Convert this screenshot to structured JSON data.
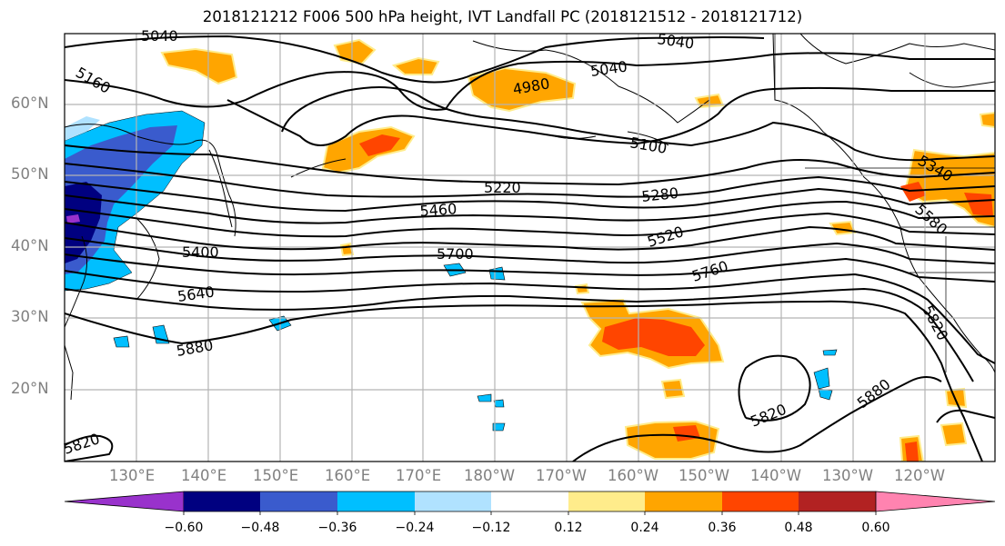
{
  "title": "2018121212 F006 500 hPa height, IVT Landfall PC (2018121512 - 2018121712)",
  "lat_labels": [
    "60°N",
    "50°N",
    "40°N",
    "30°N",
    "20°N"
  ],
  "lon_labels": [
    "130°E",
    "140°E",
    "150°E",
    "160°E",
    "170°E",
    "180°W",
    "170°W",
    "160°W",
    "150°W",
    "140°W",
    "130°W",
    "120°W"
  ],
  "contour_labels": [
    "5040",
    "5160",
    "4980",
    "5040",
    "5040",
    "5100",
    "5220",
    "5280",
    "5340",
    "5460",
    "5400",
    "5700",
    "5520",
    "5580",
    "5640",
    "5760",
    "5880",
    "5820",
    "5820",
    "5880",
    "5820"
  ],
  "colorbar": {
    "ticks": [
      "−0.60",
      "−0.48",
      "−0.36",
      "−0.24",
      "−0.12",
      "0.12",
      "0.24",
      "0.36",
      "0.48",
      "0.60"
    ],
    "colors": [
      "#9932cc",
      "#000080",
      "#3a5bcd",
      "#00bfff",
      "#b0e2ff",
      "#ffffff",
      "#ffec8b",
      "#ffa500",
      "#ff4500",
      "#b22222",
      "#ff83b0"
    ]
  }
}
